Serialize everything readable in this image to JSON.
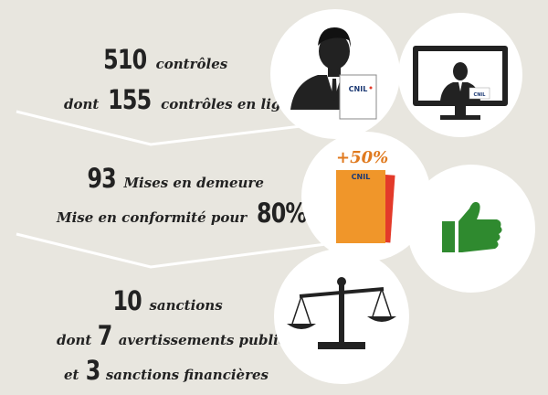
{
  "stats": {
    "row1": {
      "number": "510",
      "text": "contrôles"
    },
    "row2": {
      "prefix": "dont",
      "number": "155",
      "text": "contrôles en ligne"
    },
    "row3": {
      "number": "93",
      "text": "Mises en demeure"
    },
    "row4": {
      "text": "Mise en conformité pour",
      "number": "80%"
    },
    "row5": {
      "number": "10",
      "text": "sanctions"
    },
    "row6": {
      "prefix": "dont",
      "number": "7",
      "text": "avertissements publics"
    },
    "row7": {
      "prefix": "et",
      "number": "3",
      "text": "sanctions financières"
    }
  },
  "badge": {
    "cnil_label": "CNIL",
    "increase": "+50%"
  },
  "icons": {
    "c1": "officer-with-cnil-card-icon",
    "c2": "monitor-officer-icon",
    "c3": "cnil-cards-icon",
    "c4": "thumbs-up-icon",
    "c5": "scales-of-justice-icon"
  },
  "colors": {
    "background": "#e8e6df",
    "orange": "#f0962a",
    "red": "#e33a2a",
    "green": "#2f8a2f",
    "dark": "#222222"
  }
}
